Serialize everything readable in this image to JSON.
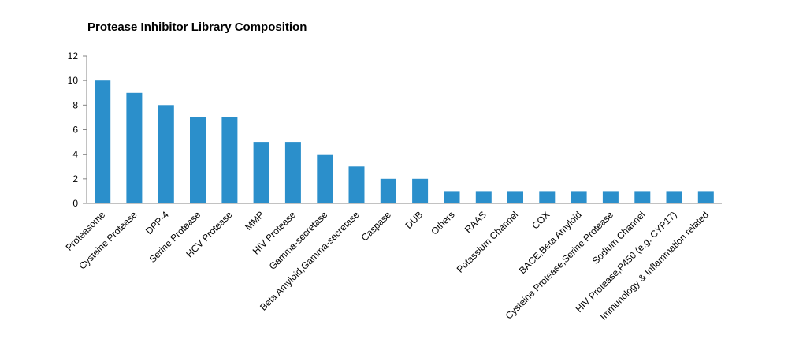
{
  "chart_data": {
    "type": "bar",
    "title": "Protease Inhibitor Library Composition",
    "xlabel": "",
    "ylabel": "",
    "ylim": [
      0,
      12
    ],
    "yticks": [
      0,
      2,
      4,
      6,
      8,
      10,
      12
    ],
    "grid": false,
    "legend": "none",
    "bar_color": "#2b8fcb",
    "categories": [
      "Proteasome",
      "Cysteine Protease",
      "DPP-4",
      "Serine Protease",
      "HCV Protease",
      "MMP",
      "HIV Protease",
      "Gamma-secretase",
      "Beta Amyloid,Gamma-secretase",
      "Caspase",
      "DUB",
      "Others",
      "RAAS",
      "Potassium Channel",
      "COX",
      "BACE,Beta Amyloid",
      "Cysteine Protease,Serine Protease",
      "Sodium Channel",
      "HIV Protease,P450 (e.g. CYP17)",
      "Immunology & Inflammation related"
    ],
    "values": [
      10,
      9,
      8,
      7,
      7,
      5,
      5,
      4,
      3,
      2,
      2,
      1,
      1,
      1,
      1,
      1,
      1,
      1,
      1,
      1
    ]
  }
}
